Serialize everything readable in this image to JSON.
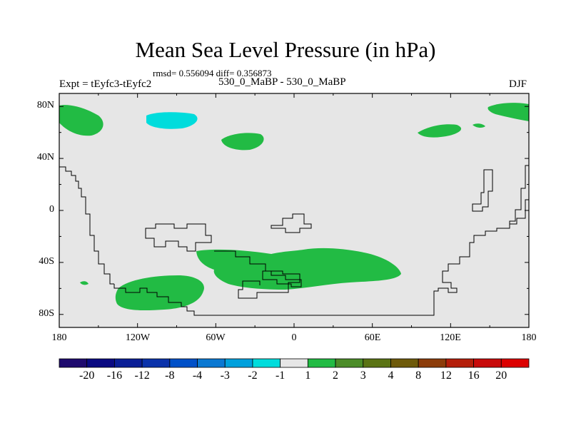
{
  "title": "Mean Sea Level Pressure (in hPa)",
  "stats_line": "rmsd= 0.556094 diff= 0.356873",
  "experiment_label": "Expt = tEyfc3-tEyfc2",
  "subtitle": "530_0_MaBP - 530_0_MaBP",
  "season": "DJF",
  "map": {
    "lat_labels": [
      "80N",
      "40N",
      "0",
      "40S",
      "80S"
    ],
    "lon_labels": [
      "180",
      "120W",
      "60W",
      "0",
      "60E",
      "120E",
      "180"
    ],
    "background_color": "#e6e6e6",
    "positive_fill_color": "#22bb44",
    "negative_fill_color": "#00dcdc"
  },
  "colorbar": {
    "labels": [
      "-20",
      "-16",
      "-12",
      "-8",
      "-4",
      "-3",
      "-2",
      "-1",
      "1",
      "2",
      "3",
      "4",
      "8",
      "12",
      "16",
      "20"
    ],
    "colors": [
      "#1e0a6e",
      "#0a0a82",
      "#0a1e96",
      "#0a32aa",
      "#0050c8",
      "#0a78d2",
      "#00a0dc",
      "#00dcdc",
      "#e6e6e6",
      "#22bb44",
      "#4b8c28",
      "#5a7314",
      "#6e5a0a",
      "#8c3c0a",
      "#b41e0a",
      "#c80a0a",
      "#dc0000"
    ]
  }
}
